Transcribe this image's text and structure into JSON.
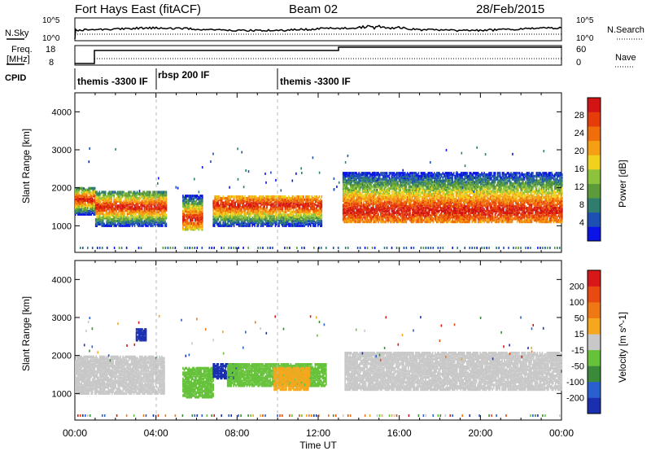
{
  "header": {
    "station": "Fort Hays East (fitACF)",
    "beam": "Beam 02",
    "date": "28/Feb/2015"
  },
  "side_labels": {
    "nsky": "N.Sky",
    "nsearch": "N.Search",
    "freq_a": "Freq.",
    "freq_b": "[MHz]",
    "nave": "Nave",
    "cpid": "CPID"
  },
  "tick_labels": {
    "nsky_top": "10^5",
    "nsky_bot": "10^0",
    "nsearch_top": "10^5",
    "nsearch_bot": "10^0",
    "freq_top": "18",
    "freq_bot": "8",
    "nave_top": "60",
    "nave_bot": "0"
  },
  "cpid_segments": [
    {
      "label": "themis -3300 IF",
      "start_hr": 0.0
    },
    {
      "label": "rbsp 200 IF",
      "start_hr": 4.0
    },
    {
      "label": "themis -3300 IF",
      "start_hr": 10.0
    }
  ],
  "chart_data": [
    {
      "type": "heatmap",
      "quantity": "Power",
      "xlabel": "",
      "ylabel": "Slant Range [km]",
      "xlim_hours": [
        0,
        24
      ],
      "ylim": [
        300,
        4500
      ],
      "yticks": [
        1000,
        2000,
        3000,
        4000
      ],
      "colorbar": {
        "label": "Power [dB]",
        "ticks": [
          4,
          8,
          12,
          16,
          20,
          24,
          28
        ],
        "colors": [
          "#0a14e6",
          "#1e50b4",
          "#2f7d6e",
          "#5c9b3a",
          "#8cc23c",
          "#f0d21e",
          "#f5a014",
          "#f06e0a",
          "#e63c0a",
          "#d21414"
        ]
      },
      "bands": [
        {
          "t0": 0.0,
          "t1": 1.0,
          "r0": 1300,
          "r1": 2000,
          "peak": 1700
        },
        {
          "t0": 1.0,
          "t1": 4.5,
          "r0": 1000,
          "r1": 1900,
          "peak": 1500
        },
        {
          "t0": 5.3,
          "t1": 6.3,
          "r0": 900,
          "r1": 1800,
          "peak": 1200
        },
        {
          "t0": 6.8,
          "t1": 12.2,
          "r0": 1000,
          "r1": 1800,
          "peak": 1550
        },
        {
          "t0": 13.2,
          "t1": 24.0,
          "r0": 1100,
          "r1": 2400,
          "peak": 1400
        }
      ]
    },
    {
      "type": "heatmap",
      "quantity": "Velocity",
      "xlabel": "Time UT",
      "ylabel": "Slant Range [km]",
      "xlim_hours": [
        0,
        24
      ],
      "xticks": [
        "00:00",
        "04:00",
        "08:00",
        "12:00",
        "16:00",
        "20:00",
        "00:00"
      ],
      "ylim": [
        300,
        4500
      ],
      "yticks": [
        1000,
        2000,
        3000,
        4000
      ],
      "colorbar": {
        "label": "Velocity [m s^-1]",
        "ticks": [
          200,
          100,
          50,
          15,
          -15,
          -50,
          -100,
          -200
        ],
        "colors": [
          "#1a2fb0",
          "#2a5fd0",
          "#3a8a3a",
          "#66c23a",
          "#c8c8c8",
          "#f5a81e",
          "#f07814",
          "#e84a10",
          "#d81818"
        ]
      },
      "patches": [
        {
          "t0": 0.0,
          "t1": 4.4,
          "r0": 1000,
          "r1": 2000,
          "color": "#c8c8c8"
        },
        {
          "t0": 3.0,
          "t1": 3.5,
          "r0": 2400,
          "r1": 2700,
          "color": "#1a2fb0"
        },
        {
          "t0": 5.3,
          "t1": 6.8,
          "r0": 900,
          "r1": 1700,
          "color": "#66c23a"
        },
        {
          "t0": 6.8,
          "t1": 8.0,
          "r0": 1400,
          "r1": 1800,
          "color": "#1a2fb0"
        },
        {
          "t0": 7.5,
          "t1": 12.4,
          "r0": 1200,
          "r1": 1800,
          "color": "#66c23a"
        },
        {
          "t0": 9.8,
          "t1": 11.6,
          "r0": 1100,
          "r1": 1700,
          "color": "#f5a81e"
        },
        {
          "t0": 13.3,
          "t1": 24.0,
          "r0": 1100,
          "r1": 2100,
          "color": "#c8c8c8"
        }
      ]
    }
  ]
}
